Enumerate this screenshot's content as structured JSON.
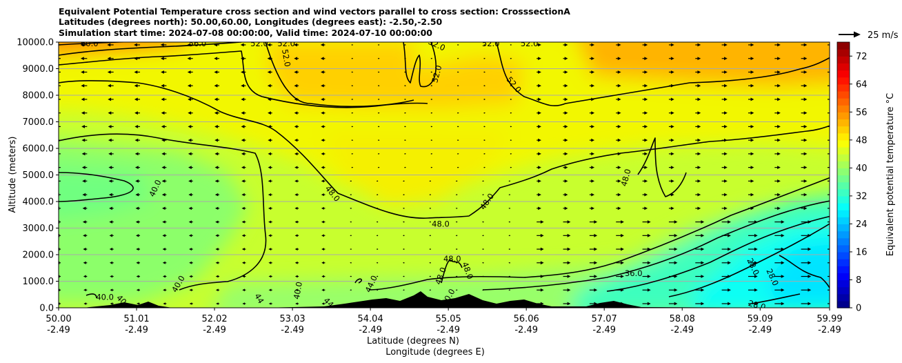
{
  "chart_data": {
    "type": "heatmap",
    "title_lines": [
      "Equivalent Potential Temperature cross section and wind vectors parallel to cross section: CrosssectionA",
      "Latitudes (degrees north): 50.00,60.00, Longitudes (degrees east): -2.50,-2.50",
      "Simulation start time: 2024-07-08 00:00:00, Valid time: 2024-07-10 00:00:00"
    ],
    "xlabel_line1": "Latitude (degrees N)",
    "xlabel_line2": "Longitude (degrees E)",
    "ylabel": "Altitude (meters)",
    "x_range": [
      50.0,
      59.99
    ],
    "ylim": [
      0,
      10000
    ],
    "x_ticks": [
      {
        "lat": "50.00",
        "lon": "-2.49",
        "v": 50.0
      },
      {
        "lat": "51.01",
        "lon": "-2.49",
        "v": 51.01
      },
      {
        "lat": "52.02",
        "lon": "-2.49",
        "v": 52.02
      },
      {
        "lat": "53.03",
        "lon": "-2.49",
        "v": 53.03
      },
      {
        "lat": "54.04",
        "lon": "-2.49",
        "v": 54.04
      },
      {
        "lat": "55.05",
        "lon": "-2.49",
        "v": 55.05
      },
      {
        "lat": "56.06",
        "lon": "-2.49",
        "v": 56.06
      },
      {
        "lat": "57.07",
        "lon": "-2.49",
        "v": 57.07
      },
      {
        "lat": "58.08",
        "lon": "-2.49",
        "v": 58.08
      },
      {
        "lat": "59.09",
        "lon": "-2.49",
        "v": 59.09
      },
      {
        "lat": "59.99",
        "lon": "-2.49",
        "v": 59.99
      }
    ],
    "y_ticks": [
      {
        "label": "0.0",
        "v": 0
      },
      {
        "label": "1000.0",
        "v": 1000
      },
      {
        "label": "2000.0",
        "v": 2000
      },
      {
        "label": "3000.0",
        "v": 3000
      },
      {
        "label": "4000.0",
        "v": 4000
      },
      {
        "label": "5000.0",
        "v": 5000
      },
      {
        "label": "6000.0",
        "v": 6000
      },
      {
        "label": "7000.0",
        "v": 7000
      },
      {
        "label": "8000.0",
        "v": 8000
      },
      {
        "label": "9000.0",
        "v": 9000
      },
      {
        "label": "10000.0",
        "v": 10000
      }
    ],
    "grid": "horizontal",
    "colorbar": {
      "label": "Equivalent potential temperature $^\\circ$C",
      "label_display": "Equivalent potential temperature °C",
      "range": [
        0,
        76
      ],
      "ticks": [
        "0",
        "8",
        "16",
        "24",
        "32",
        "40",
        "48",
        "56",
        "64",
        "72"
      ],
      "tick_values": [
        0,
        8,
        16,
        24,
        32,
        40,
        48,
        56,
        64,
        72
      ]
    },
    "quiver_key": {
      "label": "25 m/s",
      "speed": 25
    },
    "contour_labels": [
      {
        "text": "60.0",
        "x": 50.4,
        "y": 9950,
        "rot": 0
      },
      {
        "text": "56.0",
        "x": 51.8,
        "y": 9950,
        "rot": 0
      },
      {
        "text": "52.0",
        "x": 52.6,
        "y": 9950,
        "rot": 0
      },
      {
        "text": "52.0",
        "x": 52.95,
        "y": 9950,
        "rot": 0
      },
      {
        "text": "52.0",
        "x": 52.95,
        "y": 9400,
        "rot": 80
      },
      {
        "text": "52.0",
        "x": 54.9,
        "y": 9900,
        "rot": 25
      },
      {
        "text": "52.0",
        "x": 54.9,
        "y": 8800,
        "rot": -75
      },
      {
        "text": "52.0",
        "x": 55.6,
        "y": 9950,
        "rot": 0
      },
      {
        "text": "52.0",
        "x": 56.1,
        "y": 9950,
        "rot": 0
      },
      {
        "text": "52.0",
        "x": 55.9,
        "y": 8400,
        "rot": 50
      },
      {
        "text": "40.0",
        "x": 51.25,
        "y": 4500,
        "rot": -65
      },
      {
        "text": "48.0",
        "x": 53.55,
        "y": 4300,
        "rot": 50
      },
      {
        "text": "48.0",
        "x": 54.95,
        "y": 3150,
        "rot": 0
      },
      {
        "text": "48.0",
        "x": 55.55,
        "y": 4000,
        "rot": -55
      },
      {
        "text": "48.0",
        "x": 57.35,
        "y": 4900,
        "rot": -75
      },
      {
        "text": "48.0",
        "x": 55.1,
        "y": 1850,
        "rot": 0
      },
      {
        "text": "48.0",
        "x": 55.3,
        "y": 1400,
        "rot": 70
      },
      {
        "text": "48.0",
        "x": 54.95,
        "y": 1200,
        "rot": -70
      },
      {
        "text": "40.0",
        "x": 50.6,
        "y": 400,
        "rot": 0
      },
      {
        "text": "40.0",
        "x": 50.85,
        "y": 200,
        "rot": 45
      },
      {
        "text": "40.0",
        "x": 51.55,
        "y": 900,
        "rot": -60
      },
      {
        "text": "44",
        "x": 52.6,
        "y": 350,
        "rot": 60
      },
      {
        "text": "40.0",
        "x": 53.1,
        "y": 650,
        "rot": -80
      },
      {
        "text": "44",
        "x": 53.5,
        "y": 200,
        "rot": 45
      },
      {
        "text": "44.0",
        "x": 54.05,
        "y": 900,
        "rot": -65
      },
      {
        "text": "40.0",
        "x": 55.05,
        "y": 400,
        "rot": -60
      },
      {
        "text": "36.0",
        "x": 57.45,
        "y": 1300,
        "rot": 0
      },
      {
        "text": "28.0",
        "x": 59.0,
        "y": 1550,
        "rot": 65
      },
      {
        "text": "28.0",
        "x": 59.25,
        "y": 1150,
        "rot": 65
      },
      {
        "text": "28.0",
        "x": 59.05,
        "y": 100,
        "rot": 15
      }
    ]
  }
}
